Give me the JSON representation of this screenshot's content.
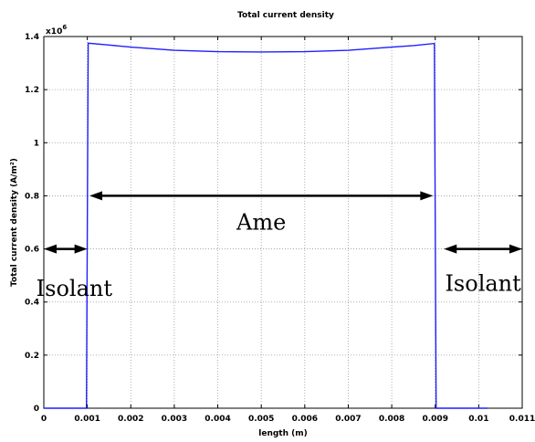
{
  "chart_data": {
    "type": "line",
    "title": "Total current density",
    "xlabel": "length (m)",
    "ylabel": "Total current density (A/m²)",
    "y_exponent_base": "x10",
    "y_exponent": "6",
    "xlim": [
      0,
      0.011
    ],
    "ylim": [
      0,
      1400000
    ],
    "grid": true,
    "x_ticks": [
      0,
      0.001,
      0.002,
      0.003,
      0.004,
      0.005,
      0.006,
      0.007,
      0.008,
      0.009,
      0.01,
      0.011
    ],
    "x_tick_labels": [
      "0",
      "0.001",
      "0.002",
      "0.003",
      "0.004",
      "0.005",
      "0.006",
      "0.007",
      "0.008",
      "0.009",
      "0.01",
      "0.011"
    ],
    "y_ticks": [
      0,
      200000,
      400000,
      600000,
      800000,
      1000000,
      1200000,
      1400000
    ],
    "y_tick_labels": [
      "0",
      "0.2",
      "0.4",
      "0.6",
      "0.8",
      "1",
      "1.2",
      "1.4"
    ],
    "series": [
      {
        "color": "#1f1fff",
        "x": [
          0,
          0.00098,
          0.00102,
          0.0015,
          0.002,
          0.003,
          0.004,
          0.005,
          0.006,
          0.007,
          0.008,
          0.0085,
          0.00898,
          0.00902,
          0.0102
        ],
        "y": [
          0,
          0,
          1375000,
          1368000,
          1360000,
          1348000,
          1343000,
          1342000,
          1343000,
          1348000,
          1360000,
          1366000,
          1374000,
          0,
          0
        ]
      }
    ],
    "annotations": [
      {
        "text": "Isolant",
        "x_from": 0.0,
        "x_to": 0.001,
        "arrow_y": 600000,
        "label_x": 0.0007,
        "label_y": 450000
      },
      {
        "text": "Ame",
        "x_from": 0.00105,
        "x_to": 0.00895,
        "arrow_y": 800000,
        "label_x": 0.005,
        "label_y": 700000
      },
      {
        "text": "Isolant",
        "x_from": 0.0092,
        "x_to": 0.011,
        "arrow_y": 600000,
        "label_x": 0.0101,
        "label_y": 470000
      }
    ]
  }
}
